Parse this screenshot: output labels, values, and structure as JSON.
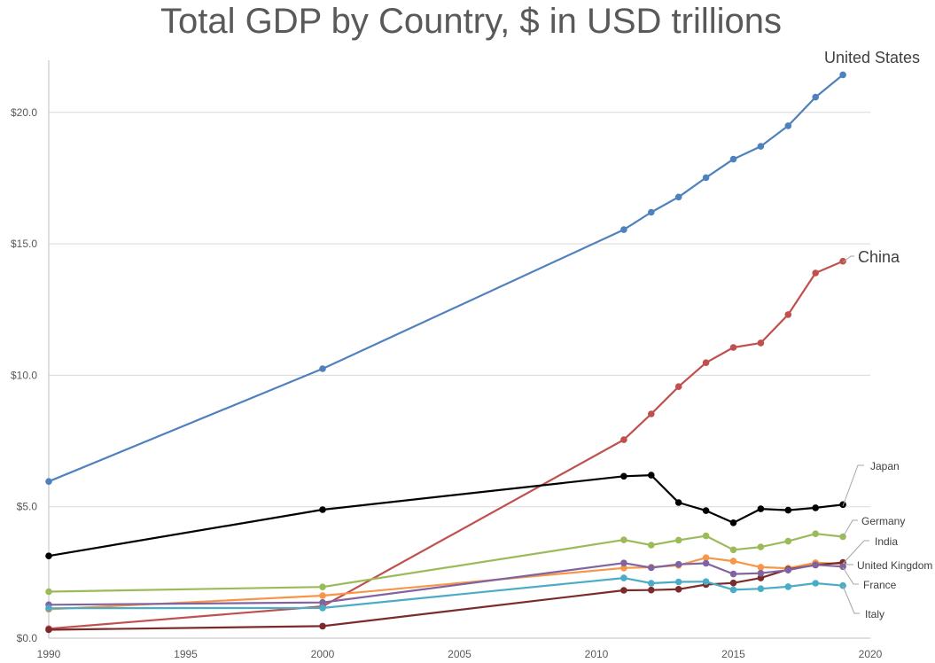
{
  "chart_data": {
    "type": "line",
    "title": "Total GDP by Country, $ in USD trillions",
    "xlabel": "",
    "ylabel": "",
    "xlim": [
      1990,
      2020
    ],
    "ylim": [
      0,
      22
    ],
    "x_ticks": [
      1990,
      1995,
      2000,
      2005,
      2010,
      2015,
      2020
    ],
    "y_ticks": [
      {
        "value": 0,
        "label": "$0.0"
      },
      {
        "value": 5,
        "label": "$5.0"
      },
      {
        "value": 10,
        "label": "$10.0"
      },
      {
        "value": 15,
        "label": "$15.0"
      },
      {
        "value": 20,
        "label": "$20.0"
      }
    ],
    "grid": "horizontal",
    "legend": "none (series labeled at right end)",
    "series": [
      {
        "name": "United States",
        "color": "#4f81bd",
        "x": [
          1990,
          2000,
          2011,
          2012,
          2013,
          2014,
          2015,
          2016,
          2017,
          2018,
          2019
        ],
        "y": [
          5.96,
          10.25,
          15.54,
          16.2,
          16.78,
          17.52,
          18.22,
          18.71,
          19.49,
          20.58,
          21.43
        ]
      },
      {
        "name": "China",
        "color": "#c0504d",
        "x": [
          1990,
          2000,
          2011,
          2012,
          2013,
          2014,
          2015,
          2016,
          2017,
          2018,
          2019
        ],
        "y": [
          0.36,
          1.21,
          7.55,
          8.53,
          9.57,
          10.48,
          11.06,
          11.23,
          12.31,
          13.89,
          14.34
        ]
      },
      {
        "name": "Japan",
        "color": "#000000",
        "x": [
          1990,
          2000,
          2011,
          2012,
          2013,
          2014,
          2015,
          2016,
          2017,
          2018,
          2019
        ],
        "y": [
          3.13,
          4.89,
          6.16,
          6.2,
          5.16,
          4.85,
          4.39,
          4.92,
          4.87,
          4.96,
          5.08
        ]
      },
      {
        "name": "Germany",
        "color": "#9bbb59",
        "x": [
          1990,
          2000,
          2011,
          2012,
          2013,
          2014,
          2015,
          2016,
          2017,
          2018,
          2019
        ],
        "y": [
          1.77,
          1.95,
          3.74,
          3.54,
          3.73,
          3.89,
          3.36,
          3.47,
          3.69,
          3.97,
          3.86
        ]
      },
      {
        "name": "India",
        "color": "#f79646",
        "x": [
          1990,
          2000,
          2011,
          2012,
          2013,
          2014,
          2015,
          2016,
          2017,
          2018,
          2019
        ],
        "y": [
          1.1,
          1.62,
          2.67,
          2.7,
          2.77,
          3.06,
          2.93,
          2.7,
          2.66,
          2.87,
          2.83
        ]
      },
      {
        "name": "United Kingdom",
        "color": "#7b2c2a",
        "x": [
          1990,
          2000,
          2011,
          2012,
          2013,
          2014,
          2015,
          2016,
          2017,
          2018,
          2019
        ],
        "y": [
          0.32,
          0.46,
          1.82,
          1.83,
          1.86,
          2.04,
          2.1,
          2.29,
          2.62,
          2.78,
          2.88
        ]
      },
      {
        "name": "France",
        "color": "#8064a2",
        "x": [
          1990,
          2000,
          2011,
          2012,
          2013,
          2014,
          2015,
          2016,
          2017,
          2018,
          2019
        ],
        "y": [
          1.27,
          1.36,
          2.86,
          2.68,
          2.81,
          2.85,
          2.44,
          2.47,
          2.59,
          2.79,
          2.72
        ]
      },
      {
        "name": "Italy",
        "color": "#4bacc6",
        "x": [
          1990,
          2000,
          2011,
          2012,
          2013,
          2014,
          2015,
          2016,
          2017,
          2018,
          2019
        ],
        "y": [
          1.14,
          1.15,
          2.29,
          2.09,
          2.14,
          2.15,
          1.84,
          1.88,
          1.96,
          2.09,
          2.0
        ]
      }
    ]
  }
}
